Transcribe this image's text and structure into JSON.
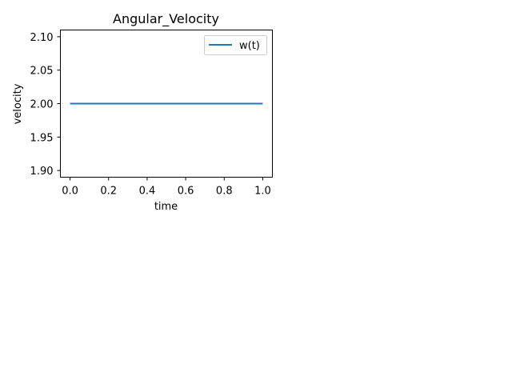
{
  "chart_data": {
    "type": "line",
    "title": "Angular_Velocity",
    "xlabel": "time",
    "ylabel": "velocity",
    "xlim": [
      -0.05,
      1.05
    ],
    "ylim": [
      1.89,
      2.11
    ],
    "xticks": [
      0.0,
      0.2,
      0.4,
      0.6,
      0.8,
      1.0
    ],
    "xtick_labels": [
      "0.0",
      "0.2",
      "0.4",
      "0.6",
      "0.8",
      "1.0"
    ],
    "yticks": [
      1.9,
      1.95,
      2.0,
      2.05,
      2.1
    ],
    "ytick_labels": [
      "1.90",
      "1.95",
      "2.00",
      "2.05",
      "2.10"
    ],
    "grid": false,
    "legend_position": "top-right",
    "series": [
      {
        "name": "w(t)",
        "color": "#1f77b4",
        "x": [
          0.0,
          1.0
        ],
        "y": [
          2.0,
          2.0
        ]
      }
    ]
  }
}
